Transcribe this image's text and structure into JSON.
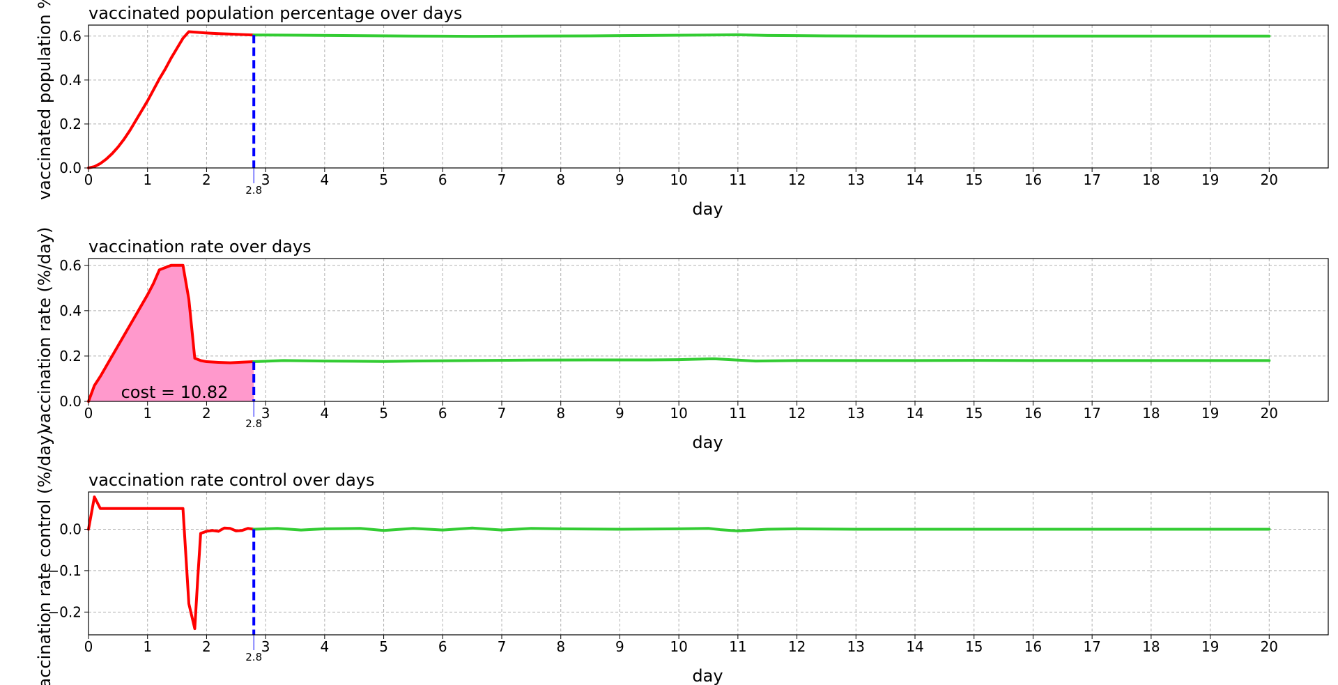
{
  "chart_data": [
    {
      "type": "line",
      "title": "vaccinated population percentage over days",
      "xlabel": "day",
      "ylabel": "vaccinated population %",
      "xlim": [
        0,
        21
      ],
      "ylim": [
        0,
        0.65
      ],
      "xticks": [
        0,
        1,
        2,
        3,
        4,
        5,
        6,
        7,
        8,
        9,
        10,
        11,
        12,
        13,
        14,
        15,
        16,
        17,
        18,
        19,
        20
      ],
      "yticks": [
        0.0,
        0.2,
        0.4,
        0.6
      ],
      "ytick_labels": [
        "0.0",
        "0.2",
        "0.4",
        "0.6"
      ],
      "grid": true,
      "marker": {
        "x": 2.8,
        "label": "2.8",
        "color": "#0000ff"
      },
      "colors": {
        "past": "#ff0000",
        "future": "#33cc33"
      },
      "series": [
        {
          "x": [
            0,
            0.1,
            0.2,
            0.3,
            0.4,
            0.5,
            0.6,
            0.7,
            0.8,
            0.9,
            1.0,
            1.1,
            1.2,
            1.3,
            1.4,
            1.5,
            1.6,
            1.7,
            1.8,
            2.0,
            2.2,
            2.4,
            2.6,
            2.8
          ],
          "y": [
            0,
            0.006,
            0.02,
            0.04,
            0.065,
            0.095,
            0.13,
            0.17,
            0.215,
            0.26,
            0.305,
            0.355,
            0.405,
            0.45,
            0.5,
            0.545,
            0.59,
            0.62,
            0.618,
            0.614,
            0.611,
            0.609,
            0.607,
            0.605
          ]
        },
        {
          "x": [
            2.8,
            3.5,
            4.5,
            5.5,
            6.5,
            7.5,
            8.5,
            9.5,
            10.5,
            11.0,
            11.5,
            12.5,
            13.5,
            14.5,
            15.5,
            16.5,
            17.5,
            18.5,
            19.5,
            20.0
          ],
          "y": [
            0.605,
            0.604,
            0.602,
            0.6,
            0.599,
            0.6,
            0.601,
            0.603,
            0.605,
            0.606,
            0.603,
            0.601,
            0.6,
            0.6,
            0.6,
            0.6,
            0.6,
            0.6,
            0.6,
            0.6
          ]
        }
      ]
    },
    {
      "type": "area",
      "title": "vaccination rate over days",
      "xlabel": "day",
      "ylabel": "vaccination rate (%/day)",
      "xlim": [
        0,
        21
      ],
      "ylim": [
        0,
        0.63
      ],
      "xticks": [
        0,
        1,
        2,
        3,
        4,
        5,
        6,
        7,
        8,
        9,
        10,
        11,
        12,
        13,
        14,
        15,
        16,
        17,
        18,
        19,
        20
      ],
      "yticks": [
        0.0,
        0.2,
        0.4,
        0.6
      ],
      "ytick_labels": [
        "0.0",
        "0.2",
        "0.4",
        "0.6"
      ],
      "grid": true,
      "marker": {
        "x": 2.8,
        "label": "2.8",
        "color": "#0000ff"
      },
      "annotation": {
        "text": "cost = 10.82",
        "x": 0.55,
        "y": 0.015
      },
      "colors": {
        "past": "#ff0000",
        "future": "#33cc33",
        "fill": "#ff99cc"
      },
      "series": [
        {
          "x": [
            0,
            0.1,
            0.2,
            0.4,
            0.6,
            0.8,
            1.0,
            1.1,
            1.2,
            1.4,
            1.6,
            1.7,
            1.8,
            1.9,
            2.0,
            2.2,
            2.4,
            2.6,
            2.8
          ],
          "y": [
            0,
            0.07,
            0.11,
            0.2,
            0.29,
            0.38,
            0.47,
            0.52,
            0.58,
            0.6,
            0.6,
            0.45,
            0.19,
            0.18,
            0.175,
            0.172,
            0.17,
            0.173,
            0.175
          ]
        },
        {
          "x": [
            2.8,
            3.3,
            4.0,
            5.0,
            5.5,
            6.5,
            7.5,
            8.5,
            9.5,
            10.0,
            10.6,
            11.3,
            12.0,
            13.0,
            14.0,
            15.0,
            16.0,
            17.0,
            18.0,
            19.0,
            20.0
          ],
          "y": [
            0.175,
            0.18,
            0.178,
            0.176,
            0.178,
            0.18,
            0.182,
            0.183,
            0.183,
            0.184,
            0.188,
            0.178,
            0.18,
            0.18,
            0.18,
            0.181,
            0.18,
            0.18,
            0.18,
            0.18,
            0.18
          ]
        }
      ]
    },
    {
      "type": "line",
      "title": "vaccination rate control over days",
      "xlabel": "day",
      "ylabel": "vaccination rate control (%/day)",
      "xlim": [
        0,
        21
      ],
      "ylim": [
        -0.255,
        0.09
      ],
      "xticks": [
        0,
        1,
        2,
        3,
        4,
        5,
        6,
        7,
        8,
        9,
        10,
        11,
        12,
        13,
        14,
        15,
        16,
        17,
        18,
        19,
        20
      ],
      "yticks": [
        0.0,
        -0.1,
        -0.2
      ],
      "ytick_labels": [
        "0.0",
        "−0.1",
        "−0.2"
      ],
      "grid": true,
      "marker": {
        "x": 2.8,
        "label": "2.8",
        "color": "#0000ff"
      },
      "colors": {
        "past": "#ff0000",
        "future": "#33cc33"
      },
      "series": [
        {
          "x": [
            0,
            0.1,
            0.2,
            0.4,
            0.8,
            1.2,
            1.6,
            1.7,
            1.8,
            1.85,
            1.9,
            2.0,
            2.1,
            2.2,
            2.3,
            2.4,
            2.5,
            2.6,
            2.7,
            2.8
          ],
          "y": [
            0,
            0.078,
            0.05,
            0.05,
            0.05,
            0.05,
            0.05,
            -0.18,
            -0.24,
            -0.12,
            -0.01,
            -0.005,
            -0.003,
            -0.005,
            0.003,
            0.002,
            -0.004,
            -0.003,
            0.002,
            0
          ],
          "color": "#ff0000"
        },
        {
          "x": [
            2.8,
            3.2,
            3.6,
            4.0,
            4.6,
            5.0,
            5.5,
            6.0,
            6.5,
            7.0,
            7.5,
            8.0,
            9.0,
            10.0,
            10.5,
            10.7,
            11.0,
            11.5,
            12.0,
            13.0,
            14.0,
            15.0,
            16.0,
            17.0,
            18.0,
            19.0,
            20.0
          ],
          "y": [
            0,
            0.002,
            -0.002,
            0.001,
            0.002,
            -0.003,
            0.002,
            -0.002,
            0.003,
            -0.002,
            0.002,
            0.001,
            0,
            0.001,
            0.002,
            -0.001,
            -0.004,
            0,
            0.001,
            0,
            0,
            0,
            0,
            0,
            0,
            0,
            0
          ],
          "color": "#33cc33"
        }
      ]
    }
  ]
}
